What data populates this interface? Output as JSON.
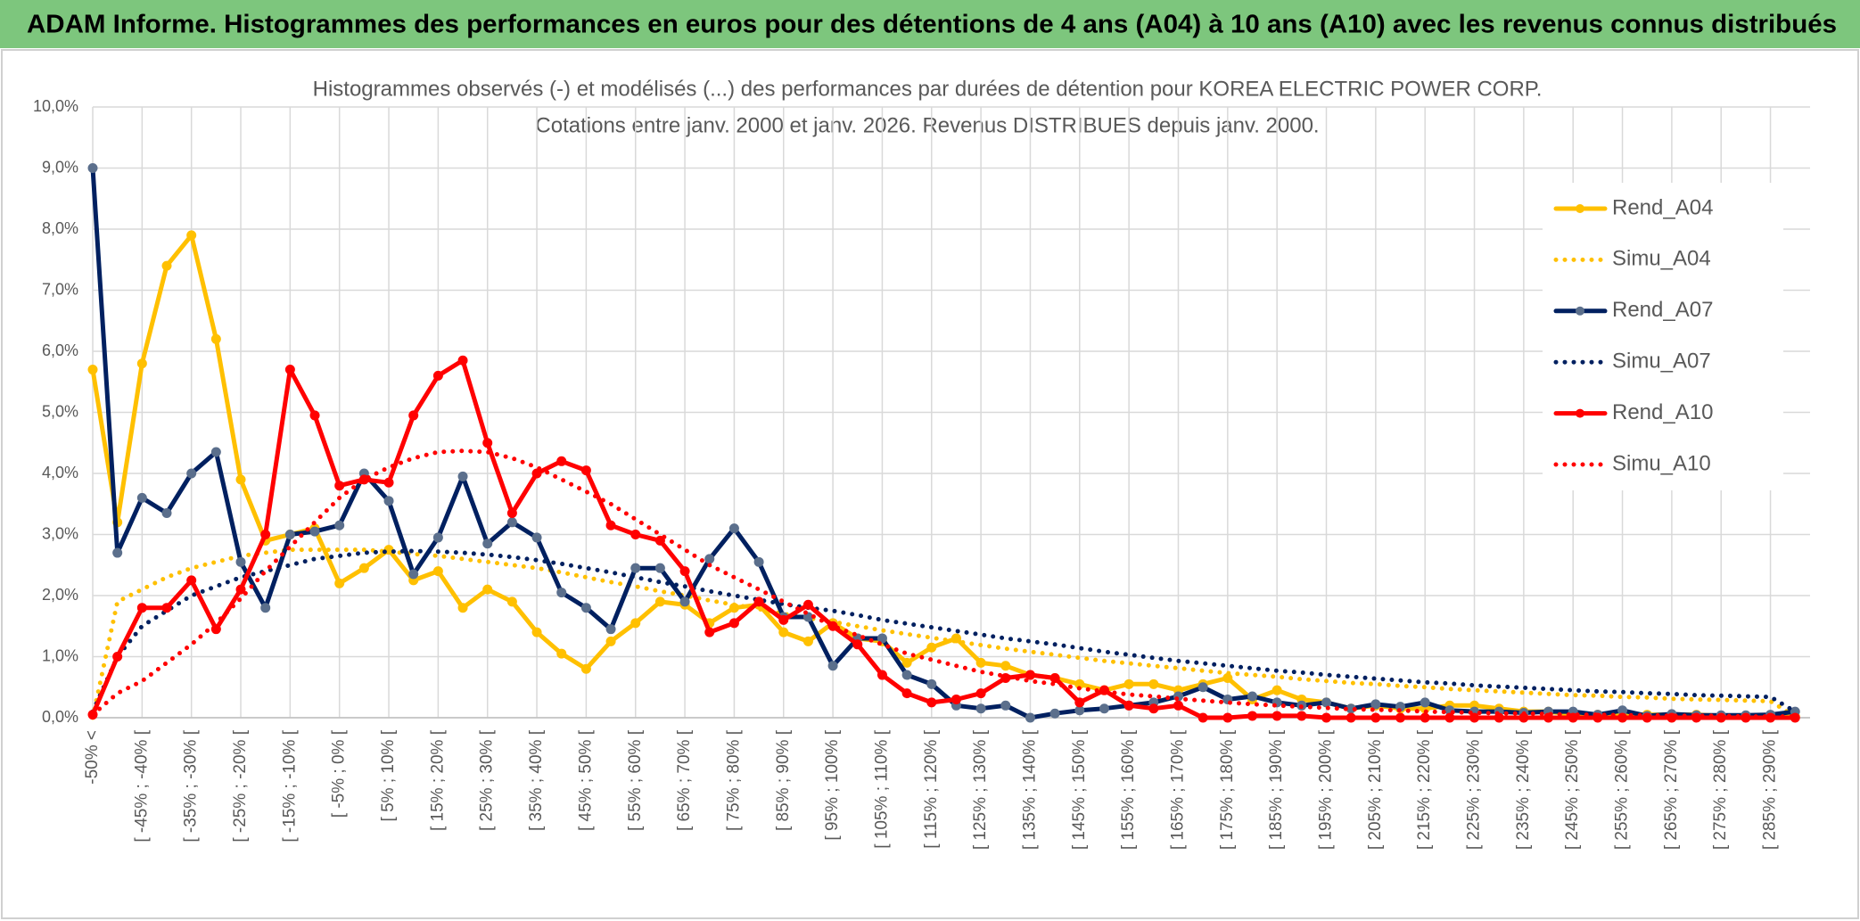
{
  "header": {
    "title": "ADAM Informe. Histogrammes des performances en euros pour des détentions de 4 ans (A04) à 10 ans (A10) avec les revenus connus distribués"
  },
  "chart_data": {
    "type": "line",
    "title": "Histogrammes observés (-) et modélisés (...) des performances par durées de détention pour KOREA ELECTRIC POWER CORP.",
    "subtitle": "Cotations entre janv. 2000 et janv. 2026. Revenus DISTRIBUES depuis janv. 2000.",
    "categories": [
      "-50% <",
      null,
      "[ -45% ; -40% [",
      null,
      "[ -35% ; -30% [",
      null,
      "[ -25% ; -20% [",
      null,
      "[ -15% ; -10% [",
      null,
      "[ -5% ; 0% [",
      null,
      "[ 5% ; 10% [",
      null,
      "[ 15% ; 20% [",
      null,
      "[ 25% ; 30% [",
      null,
      "[ 35% ; 40% [",
      null,
      "[ 45% ; 50% [",
      null,
      "[ 55% ; 60% [",
      null,
      "[ 65% ; 70% [",
      null,
      "[ 75% ; 80% [",
      null,
      "[ 85% ; 90% [",
      null,
      "[ 95% ; 100% [",
      null,
      "[ 105% ; 110% [",
      null,
      "[ 115% ; 120% [",
      null,
      "[ 125% ; 130% [",
      null,
      "[ 135% ; 140% [",
      null,
      "[ 145% ; 150% [",
      null,
      "[ 155% ; 160% [",
      null,
      "[ 165% ; 170% [",
      null,
      "[ 175% ; 180% [",
      null,
      "[ 185% ; 190% [",
      null,
      "[ 195% ; 200% [",
      null,
      "[ 205% ; 210% [",
      null,
      "[ 215% ; 220% [",
      null,
      "[ 225% ; 230% [",
      null,
      "[ 235% ; 240% [",
      null,
      "[ 245% ; 250% [",
      null,
      "[ 255% ; 260% [",
      null,
      "[ 265% ; 270% [",
      null,
      "[ 275% ; 280% [",
      null,
      "[ 285% ; 290% [",
      null
    ],
    "series": [
      {
        "name": "Rend_A04",
        "color": "#FFC000",
        "style": "solid",
        "marker_color": "#FFC000",
        "values": [
          5.7,
          3.2,
          5.8,
          7.4,
          7.9,
          6.2,
          3.9,
          2.9,
          3.0,
          3.1,
          2.2,
          2.45,
          2.75,
          2.25,
          2.4,
          1.8,
          2.1,
          1.9,
          1.4,
          1.05,
          0.8,
          1.25,
          1.55,
          1.9,
          1.85,
          1.55,
          1.8,
          1.85,
          1.4,
          1.25,
          1.55,
          1.3,
          1.25,
          0.9,
          1.15,
          1.3,
          0.9,
          0.85,
          0.7,
          0.65,
          0.55,
          0.45,
          0.55,
          0.55,
          0.45,
          0.55,
          0.65,
          0.3,
          0.45,
          0.3,
          0.25,
          0.15,
          0.2,
          0.15,
          0.15,
          0.2,
          0.2,
          0.15,
          0.1,
          0.1,
          0.05,
          0.05,
          0.05,
          0.05,
          0.05,
          0.05,
          0.03,
          0.03,
          0.03,
          0.02
        ]
      },
      {
        "name": "Simu_A04",
        "color": "#FFC000",
        "style": "dotted",
        "values": [
          0.0,
          1.9,
          2.1,
          2.3,
          2.45,
          2.55,
          2.65,
          2.7,
          2.75,
          2.75,
          2.75,
          2.75,
          2.72,
          2.68,
          2.65,
          2.6,
          2.55,
          2.5,
          2.45,
          2.38,
          2.3,
          2.22,
          2.15,
          2.07,
          2.0,
          1.92,
          1.85,
          1.78,
          1.7,
          1.63,
          1.57,
          1.5,
          1.43,
          1.37,
          1.31,
          1.25,
          1.19,
          1.13,
          1.08,
          1.03,
          0.98,
          0.93,
          0.89,
          0.85,
          0.81,
          0.77,
          0.73,
          0.7,
          0.67,
          0.63,
          0.6,
          0.57,
          0.55,
          0.52,
          0.5,
          0.47,
          0.45,
          0.43,
          0.41,
          0.39,
          0.37,
          0.36,
          0.34,
          0.33,
          0.31,
          0.3,
          0.29,
          0.28,
          0.27,
          0.02
        ]
      },
      {
        "name": "Rend_A07",
        "color": "#002060",
        "style": "solid",
        "marker_color": "#5B6F8C",
        "values": [
          9.0,
          2.7,
          3.6,
          3.35,
          4.0,
          4.35,
          2.55,
          1.8,
          3.0,
          3.05,
          3.15,
          4.0,
          3.55,
          2.35,
          2.95,
          3.95,
          2.85,
          3.2,
          2.95,
          2.05,
          1.8,
          1.45,
          2.45,
          2.45,
          1.9,
          2.6,
          3.1,
          2.55,
          1.65,
          1.65,
          0.85,
          1.3,
          1.3,
          0.7,
          0.55,
          0.2,
          0.15,
          0.2,
          0.0,
          0.07,
          0.12,
          0.15,
          0.2,
          0.25,
          0.35,
          0.5,
          0.3,
          0.35,
          0.25,
          0.2,
          0.25,
          0.15,
          0.22,
          0.18,
          0.25,
          0.12,
          0.1,
          0.1,
          0.08,
          0.1,
          0.1,
          0.05,
          0.12,
          0.03,
          0.06,
          0.04,
          0.04,
          0.04,
          0.05,
          0.1
        ]
      },
      {
        "name": "Simu_A07",
        "color": "#002060",
        "style": "dotted",
        "values": [
          0.1,
          1.0,
          1.5,
          1.75,
          2.0,
          2.15,
          2.3,
          2.4,
          2.5,
          2.6,
          2.65,
          2.7,
          2.72,
          2.73,
          2.72,
          2.7,
          2.67,
          2.63,
          2.58,
          2.52,
          2.45,
          2.38,
          2.3,
          2.22,
          2.15,
          2.07,
          2.0,
          1.93,
          1.86,
          1.8,
          1.75,
          1.68,
          1.6,
          1.54,
          1.48,
          1.42,
          1.36,
          1.3,
          1.25,
          1.2,
          1.14,
          1.08,
          1.03,
          0.98,
          0.93,
          0.89,
          0.85,
          0.81,
          0.77,
          0.74,
          0.7,
          0.67,
          0.64,
          0.61,
          0.58,
          0.56,
          0.53,
          0.51,
          0.49,
          0.47,
          0.45,
          0.43,
          0.42,
          0.4,
          0.39,
          0.37,
          0.36,
          0.35,
          0.34,
          0.1
        ]
      },
      {
        "name": "Rend_A10",
        "color": "#FF0000",
        "style": "solid",
        "marker_color": "#FF0000",
        "values": [
          0.05,
          1.0,
          1.8,
          1.8,
          2.25,
          1.45,
          2.1,
          3.0,
          5.7,
          4.95,
          3.8,
          3.9,
          3.85,
          4.95,
          5.6,
          5.85,
          4.5,
          3.35,
          4.0,
          4.2,
          4.05,
          3.15,
          3.0,
          2.9,
          2.4,
          1.4,
          1.55,
          1.9,
          1.6,
          1.85,
          1.5,
          1.2,
          0.7,
          0.4,
          0.25,
          0.3,
          0.4,
          0.65,
          0.7,
          0.65,
          0.25,
          0.45,
          0.2,
          0.15,
          0.2,
          0.0,
          0.0,
          0.03,
          0.03,
          0.03,
          0.0,
          0.0,
          0.0,
          0.0,
          0.0,
          0.0,
          0.0,
          0.0,
          0.0,
          0.0,
          0.0,
          0.0,
          0.0,
          0.0,
          0.0,
          0.0,
          0.0,
          0.0,
          0.0,
          0.0
        ]
      },
      {
        "name": "Simu_A10",
        "color": "#FF0000",
        "style": "dotted",
        "values": [
          0.05,
          0.4,
          0.6,
          0.9,
          1.2,
          1.55,
          1.95,
          2.4,
          2.8,
          3.2,
          3.6,
          3.9,
          4.1,
          4.25,
          4.35,
          4.37,
          4.35,
          4.25,
          4.1,
          3.9,
          3.7,
          3.5,
          3.25,
          3.0,
          2.75,
          2.5,
          2.3,
          2.1,
          1.9,
          1.7,
          1.5,
          1.35,
          1.2,
          1.05,
          0.95,
          0.85,
          0.75,
          0.68,
          0.6,
          0.55,
          0.48,
          0.43,
          0.38,
          0.35,
          0.31,
          0.28,
          0.25,
          0.22,
          0.2,
          0.18,
          0.16,
          0.14,
          0.13,
          0.12,
          0.1,
          0.09,
          0.08,
          0.07,
          0.07,
          0.06,
          0.05,
          0.05,
          0.04,
          0.04,
          0.03,
          0.03,
          0.03,
          0.02,
          0.02,
          0.02
        ]
      }
    ],
    "ylim": [
      0,
      10
    ],
    "yticks": [
      {
        "value": 0,
        "label": "0,0%"
      },
      {
        "value": 1,
        "label": "1,0%"
      },
      {
        "value": 2,
        "label": "2,0%"
      },
      {
        "value": 3,
        "label": "3,0%"
      },
      {
        "value": 4,
        "label": "4,0%"
      },
      {
        "value": 5,
        "label": "5,0%"
      },
      {
        "value": 6,
        "label": "6,0%"
      },
      {
        "value": 7,
        "label": "7,0%"
      },
      {
        "value": 8,
        "label": "8,0%"
      },
      {
        "value": 9,
        "label": "9,0%"
      },
      {
        "value": 10,
        "label": "10,0%"
      }
    ],
    "grid": true,
    "legend": "right"
  }
}
